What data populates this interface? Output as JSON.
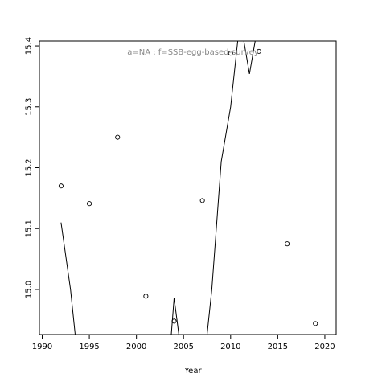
{
  "chart_data": {
    "type": "scatter",
    "title": "",
    "xlabel": "Year",
    "ylabel": "",
    "annotation": "a=NA  :  f=SSB-egg-based-survey",
    "xlim": [
      1989.7,
      2021.2
    ],
    "ylim": [
      14.926,
      15.408
    ],
    "x_ticks": [
      1990,
      1995,
      2000,
      2005,
      2010,
      2015,
      2020
    ],
    "y_ticks": [
      15.0,
      15.1,
      15.2,
      15.3,
      15.4
    ],
    "x_tick_labels": [
      "1990",
      "1995",
      "2000",
      "2005",
      "2010",
      "2015",
      "2020"
    ],
    "y_tick_labels": [
      "15.0",
      "15.1",
      "15.2",
      "15.3",
      "15.4"
    ],
    "grid": false,
    "legend": "none",
    "series": [
      {
        "kind": "points",
        "x": [
          1992,
          1995,
          1998,
          2001,
          2004,
          2007,
          2010,
          2013,
          2016,
          2019
        ],
        "y": [
          15.17,
          15.141,
          15.25,
          14.989,
          14.948,
          15.146,
          15.388,
          15.391,
          15.075,
          14.944
        ]
      },
      {
        "kind": "line",
        "segments": [
          {
            "x": [
              1992,
              1993,
              1993.5
            ],
            "y": [
              15.11,
              15.0,
              14.926
            ]
          },
          {
            "x": [
              2003.7,
              2004,
              2004.5
            ],
            "y": [
              14.926,
              14.986,
              14.926
            ]
          },
          {
            "x": [
              2007.5,
              2008,
              2009,
              2010,
              2010.75
            ],
            "y": [
              14.926,
              15.0,
              15.21,
              15.3,
              15.408
            ]
          },
          {
            "x": [
              2011.4,
              2012,
              2012.6
            ],
            "y": [
              15.408,
              15.354,
              15.408
            ]
          }
        ]
      }
    ]
  }
}
